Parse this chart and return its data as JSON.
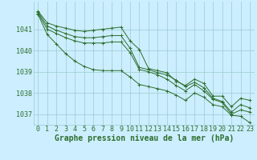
{
  "background_color": "#cceeff",
  "plot_bg_color": "#cceeff",
  "grid_color": "#99cccc",
  "line_color": "#2d6e2d",
  "xlabel": "Graphe pression niveau de la mer (hPa)",
  "xlabel_fontsize": 7,
  "tick_fontsize": 6,
  "ylim": [
    1036.5,
    1042.3
  ],
  "xlim": [
    -0.5,
    23.5
  ],
  "yticks": [
    1037,
    1038,
    1039,
    1040,
    1041
  ],
  "xtick_labels": [
    "0",
    "1",
    "2",
    "3",
    "4",
    "5",
    "6",
    "7",
    "8",
    "9",
    "10",
    "11",
    "12",
    "13",
    "14",
    "15",
    "16",
    "17",
    "18",
    "19",
    "20",
    "21",
    "22",
    "23"
  ],
  "series": [
    [
      1041.85,
      1041.3,
      1041.15,
      1041.05,
      1040.95,
      1040.9,
      1040.95,
      1041.0,
      1041.05,
      1041.1,
      1040.45,
      1040.05,
      1039.15,
      1039.05,
      1038.95,
      1038.55,
      1038.35,
      1038.65,
      1038.45,
      1037.85,
      1037.85,
      1037.35,
      1037.75,
      1037.65
    ],
    [
      1041.8,
      1041.15,
      1040.95,
      1040.8,
      1040.65,
      1040.6,
      1040.6,
      1040.65,
      1040.7,
      1040.7,
      1040.1,
      1039.2,
      1039.1,
      1038.95,
      1038.85,
      1038.6,
      1038.3,
      1038.5,
      1038.25,
      1037.75,
      1037.6,
      1037.1,
      1037.45,
      1037.3
    ],
    [
      1041.75,
      1041.0,
      1040.8,
      1040.6,
      1040.45,
      1040.35,
      1040.35,
      1040.35,
      1040.4,
      1040.4,
      1039.9,
      1039.1,
      1039.0,
      1038.85,
      1038.65,
      1038.35,
      1038.1,
      1038.4,
      1038.1,
      1037.7,
      1037.55,
      1037.0,
      1037.2,
      1037.1
    ],
    [
      1041.7,
      1040.75,
      1040.3,
      1039.85,
      1039.5,
      1039.25,
      1039.1,
      1039.05,
      1039.05,
      1039.05,
      1038.75,
      1038.4,
      1038.3,
      1038.2,
      1038.1,
      1037.9,
      1037.65,
      1038.0,
      1037.8,
      1037.45,
      1037.35,
      1036.95,
      1036.9,
      1036.6
    ]
  ]
}
